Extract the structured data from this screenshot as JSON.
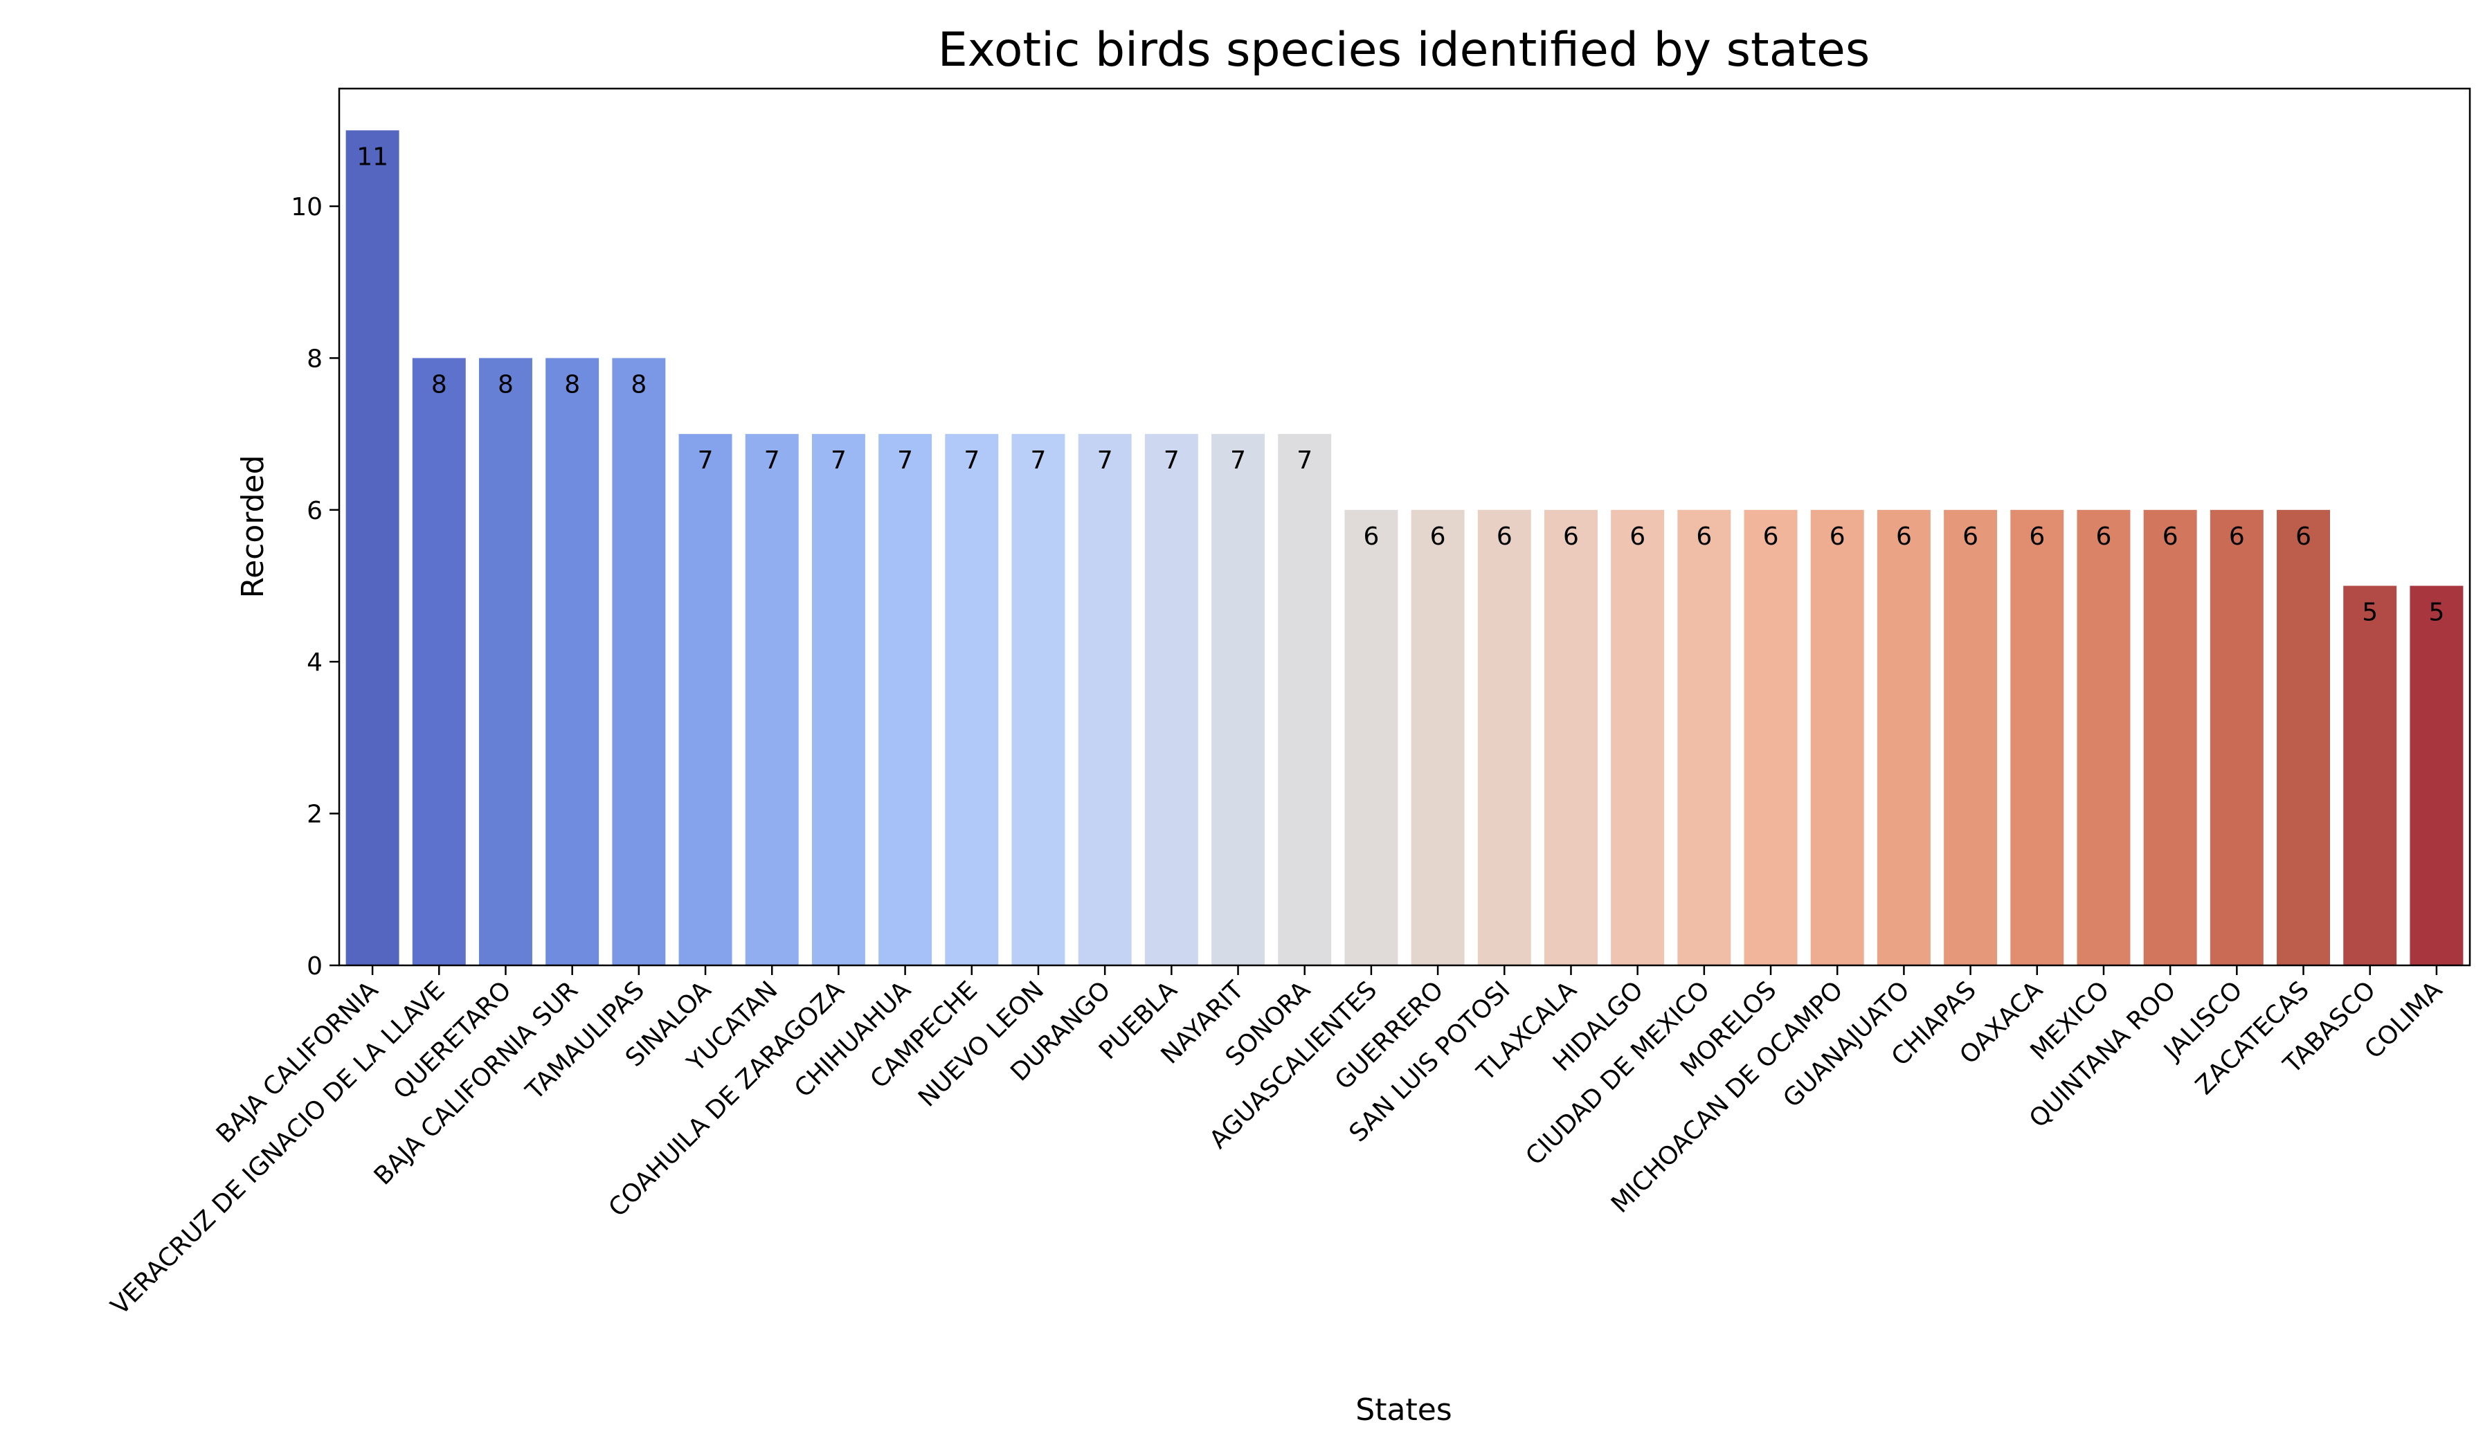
{
  "chart_data": {
    "type": "bar",
    "title": "Exotic birds species identified by states",
    "xlabel": "States",
    "ylabel": "Recorded",
    "ylim": [
      0,
      11.55
    ],
    "yticks": [
      0,
      2,
      4,
      6,
      8,
      10
    ],
    "grid": false,
    "legend": "none",
    "categories": [
      "BAJA CALIFORNIA",
      "VERACRUZ DE IGNACIO DE LA LLAVE",
      "QUERETARO",
      "BAJA CALIFORNIA SUR",
      "TAMAULIPAS",
      "SINALOA",
      "YUCATAN",
      "COAHUILA DE ZARAGOZA",
      "CHIHUAHUA",
      "CAMPECHE",
      "NUEVO LEON",
      "DURANGO",
      "PUEBLA",
      "NAYARIT",
      "SONORA",
      "AGUASCALIENTES",
      "GUERRERO",
      "SAN LUIS POTOSI",
      "TLAXCALA",
      "HIDALGO",
      "CIUDAD DE MEXICO",
      "MORELOS",
      "MICHOACAN DE OCAMPO",
      "GUANAJUATO",
      "CHIAPAS",
      "OAXACA",
      "MEXICO",
      "QUINTANA ROO",
      "JALISCO",
      "ZACATECAS",
      "TABASCO",
      "COLIMA"
    ],
    "values": [
      11,
      8,
      8,
      8,
      8,
      7,
      7,
      7,
      7,
      7,
      7,
      7,
      7,
      7,
      7,
      6,
      6,
      6,
      6,
      6,
      6,
      6,
      6,
      6,
      6,
      6,
      6,
      6,
      6,
      6,
      5,
      5
    ],
    "data_labels": [
      "11",
      "8",
      "8",
      "8",
      "8",
      "7",
      "7",
      "7",
      "7",
      "7",
      "7",
      "7",
      "7",
      "7",
      "7",
      "6",
      "6",
      "6",
      "6",
      "6",
      "6",
      "6",
      "6",
      "6",
      "6",
      "6",
      "6",
      "6",
      "6",
      "6",
      "5",
      "5"
    ],
    "colors": [
      "#5466bf",
      "#5d72cc",
      "#6680d5",
      "#6f8cde",
      "#7a98e5",
      "#85a3ec",
      "#90aef0",
      "#9bb8f4",
      "#a6c1f7",
      "#b0c9f8",
      "#bacff7",
      "#c4d3f4",
      "#cdd7ef",
      "#d6dbe8",
      "#dddde0",
      "#e0dbd8",
      "#e4d5cd",
      "#e8d0c4",
      "#eccbbc",
      "#efc4b1",
      "#f0bda6",
      "#f0b59b",
      "#eeac90",
      "#eba385",
      "#e6987a",
      "#e18e70",
      "#da8366",
      "#d2775d",
      "#c96b55",
      "#bd5d4c",
      "#b24b46",
      "#a8363f"
    ]
  }
}
